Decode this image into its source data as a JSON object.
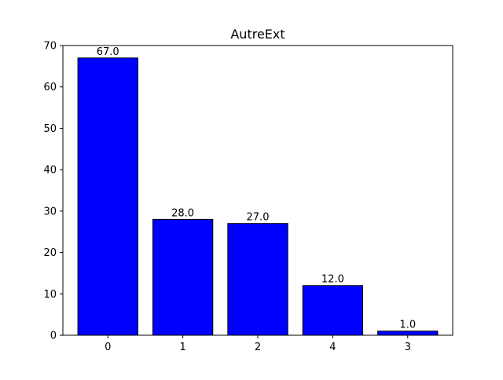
{
  "chart_data": {
    "type": "bar",
    "title": "AutreExt",
    "xlabel": "",
    "ylabel": "",
    "categories": [
      "0",
      "1",
      "2",
      "4",
      "3"
    ],
    "values": [
      67.0,
      28.0,
      27.0,
      12.0,
      1.0
    ],
    "value_labels": [
      "67.0",
      "28.0",
      "27.0",
      "12.0",
      "1.0"
    ],
    "ylim": [
      0,
      70
    ],
    "yticks": [
      0,
      10,
      20,
      30,
      40,
      50,
      60,
      70
    ],
    "bar_color": "#0000ff",
    "bar_edge_color": "#000000",
    "grid": false,
    "legend": "none"
  }
}
